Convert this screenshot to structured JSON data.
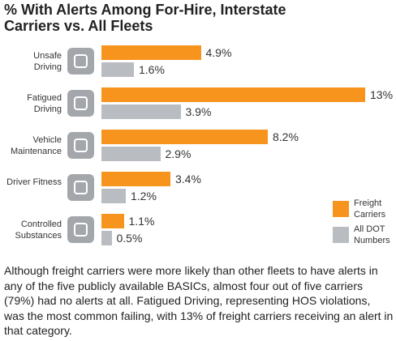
{
  "chart_data": {
    "type": "bar",
    "orientation": "horizontal",
    "title": "% With Alerts Among For-Hire, Interstate Carriers vs. All Fleets",
    "categories": [
      "Unsafe Driving",
      "Fatigued Driving",
      "Vehicle Maintenance",
      "Driver Fitness",
      "Controlled Substances"
    ],
    "series": [
      {
        "name": "Freight Carriers",
        "color": "#f7941d",
        "values": [
          4.9,
          13,
          8.2,
          3.4,
          1.1
        ],
        "value_labels": [
          "4.9%",
          "13%",
          "8.2%",
          "3.4%",
          "1.1%"
        ]
      },
      {
        "name": "All DOT Numbers",
        "color": "#b9bdc1",
        "values": [
          1.6,
          3.9,
          2.9,
          1.2,
          0.5
        ],
        "value_labels": [
          "1.6%",
          "3.9%",
          "2.9%",
          "1.2%",
          "0.5%"
        ]
      }
    ],
    "legend": "bottom-right",
    "caption": "Although freight carriers were more likely than other fleets to have alerts in any of the five publicly available BASICs, almost four out of five carriers (79%) had no alerts at all. Fatigued Driving, representing HOS violations, was the most common failing, with 13% of freight carriers receiving an alert in that category."
  }
}
